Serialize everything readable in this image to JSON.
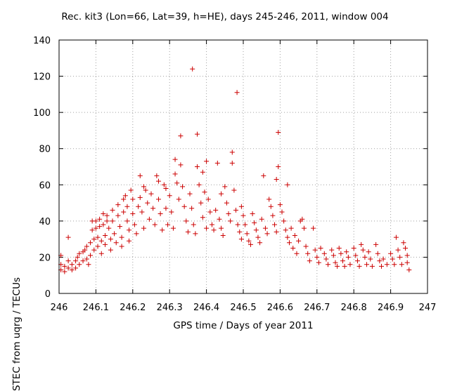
{
  "chart_data": {
    "type": "scatter",
    "title": "Rec. kit3 (Lon=66, Lat=39, h=HE), days 245-246, 2011, window 004",
    "xlabel": "GPS time / Days of year 2011",
    "ylabel": "STEC from uqrg / TECUs",
    "xlim": [
      246,
      247
    ],
    "ylim": [
      0,
      140
    ],
    "xticks": [
      246,
      246.1,
      246.2,
      246.3,
      246.4,
      246.5,
      246.6,
      246.7,
      246.8,
      246.9,
      247
    ],
    "xtick_labels": [
      "246",
      "246.1",
      "246.2",
      "246.3",
      "246.4",
      "246.5",
      "246.6",
      "246.7",
      "246.8",
      "246.9",
      "247"
    ],
    "yticks": [
      0,
      20,
      40,
      60,
      80,
      100,
      120,
      140
    ],
    "ytick_labels": [
      "0",
      "20",
      "40",
      "60",
      "80",
      "100",
      "120",
      "140"
    ],
    "marker": "+",
    "color": "#cc0000",
    "grid": true,
    "series": [
      {
        "name": "STEC",
        "points": [
          [
            246.005,
            21
          ],
          [
            246.005,
            16
          ],
          [
            246.005,
            13
          ],
          [
            246.015,
            15
          ],
          [
            246.015,
            12
          ],
          [
            246.025,
            31
          ],
          [
            246.025,
            18
          ],
          [
            246.025,
            14
          ],
          [
            246.035,
            16
          ],
          [
            246.035,
            13
          ],
          [
            246.045,
            18
          ],
          [
            246.045,
            14
          ],
          [
            246.05,
            20
          ],
          [
            246.055,
            22
          ],
          [
            246.055,
            16
          ],
          [
            246.065,
            23
          ],
          [
            246.065,
            18
          ],
          [
            246.07,
            24
          ],
          [
            246.075,
            26
          ],
          [
            246.075,
            19
          ],
          [
            246.08,
            16
          ],
          [
            246.085,
            28
          ],
          [
            246.085,
            21
          ],
          [
            246.09,
            40
          ],
          [
            246.09,
            35
          ],
          [
            246.095,
            30
          ],
          [
            246.095,
            24
          ],
          [
            246.1,
            40
          ],
          [
            246.1,
            36
          ],
          [
            246.105,
            31
          ],
          [
            246.105,
            26
          ],
          [
            246.11,
            41
          ],
          [
            246.11,
            37
          ],
          [
            246.115,
            29
          ],
          [
            246.115,
            22
          ],
          [
            246.12,
            44
          ],
          [
            246.12,
            38
          ],
          [
            246.125,
            32
          ],
          [
            246.125,
            27
          ],
          [
            246.13,
            43
          ],
          [
            246.13,
            40
          ],
          [
            246.135,
            36
          ],
          [
            246.14,
            30
          ],
          [
            246.14,
            24
          ],
          [
            246.145,
            46
          ],
          [
            246.145,
            40
          ],
          [
            246.15,
            33
          ],
          [
            246.155,
            28
          ],
          [
            246.16,
            49
          ],
          [
            246.16,
            43
          ],
          [
            246.165,
            37
          ],
          [
            246.17,
            31
          ],
          [
            246.17,
            26
          ],
          [
            246.175,
            52
          ],
          [
            246.175,
            45
          ],
          [
            246.18,
            54
          ],
          [
            246.185,
            48
          ],
          [
            246.185,
            40
          ],
          [
            246.19,
            35
          ],
          [
            246.19,
            29
          ],
          [
            246.195,
            57
          ],
          [
            246.2,
            52
          ],
          [
            246.2,
            44
          ],
          [
            246.205,
            38
          ],
          [
            246.21,
            33
          ],
          [
            246.215,
            48
          ],
          [
            246.22,
            65
          ],
          [
            246.22,
            53
          ],
          [
            246.225,
            45
          ],
          [
            246.23,
            59
          ],
          [
            246.23,
            36
          ],
          [
            246.235,
            57
          ],
          [
            246.24,
            50
          ],
          [
            246.245,
            41
          ],
          [
            246.25,
            55
          ],
          [
            246.255,
            47
          ],
          [
            246.26,
            38
          ],
          [
            246.265,
            65
          ],
          [
            246.27,
            62
          ],
          [
            246.27,
            52
          ],
          [
            246.275,
            44
          ],
          [
            246.28,
            35
          ],
          [
            246.285,
            60
          ],
          [
            246.29,
            58
          ],
          [
            246.29,
            47
          ],
          [
            246.295,
            38
          ],
          [
            246.3,
            54
          ],
          [
            246.305,
            45
          ],
          [
            246.31,
            36
          ],
          [
            246.315,
            66
          ],
          [
            246.315,
            74
          ],
          [
            246.32,
            61
          ],
          [
            246.325,
            52
          ],
          [
            246.33,
            71
          ],
          [
            246.33,
            87
          ],
          [
            246.335,
            59
          ],
          [
            246.34,
            48
          ],
          [
            246.345,
            40
          ],
          [
            246.35,
            34
          ],
          [
            246.355,
            55
          ],
          [
            246.36,
            47
          ],
          [
            246.362,
            124
          ],
          [
            246.365,
            38
          ],
          [
            246.37,
            33
          ],
          [
            246.375,
            88
          ],
          [
            246.375,
            70
          ],
          [
            246.38,
            60
          ],
          [
            246.385,
            50
          ],
          [
            246.39,
            67
          ],
          [
            246.39,
            42
          ],
          [
            246.395,
            56
          ],
          [
            246.4,
            73
          ],
          [
            246.4,
            36
          ],
          [
            246.405,
            52
          ],
          [
            246.41,
            45
          ],
          [
            246.415,
            38
          ],
          [
            246.42,
            35
          ],
          [
            246.425,
            46
          ],
          [
            246.43,
            72
          ],
          [
            246.435,
            41
          ],
          [
            246.44,
            55
          ],
          [
            246.44,
            36
          ],
          [
            246.445,
            32
          ],
          [
            246.45,
            59
          ],
          [
            246.455,
            50
          ],
          [
            246.46,
            44
          ],
          [
            246.465,
            40
          ],
          [
            246.47,
            78
          ],
          [
            246.47,
            72
          ],
          [
            246.475,
            57
          ],
          [
            246.48,
            46
          ],
          [
            246.483,
            111
          ],
          [
            246.485,
            38
          ],
          [
            246.49,
            34
          ],
          [
            246.495,
            48
          ],
          [
            246.495,
            30
          ],
          [
            246.5,
            43
          ],
          [
            246.505,
            38
          ],
          [
            246.51,
            33
          ],
          [
            246.515,
            29
          ],
          [
            246.52,
            27
          ],
          [
            246.525,
            44
          ],
          [
            246.53,
            39
          ],
          [
            246.535,
            35
          ],
          [
            246.54,
            31
          ],
          [
            246.545,
            28
          ],
          [
            246.55,
            41
          ],
          [
            246.555,
            65
          ],
          [
            246.56,
            36
          ],
          [
            246.565,
            33
          ],
          [
            246.57,
            52
          ],
          [
            246.575,
            48
          ],
          [
            246.58,
            43
          ],
          [
            246.585,
            38
          ],
          [
            246.59,
            63
          ],
          [
            246.59,
            34
          ],
          [
            246.595,
            89
          ],
          [
            246.595,
            70
          ],
          [
            246.6,
            49
          ],
          [
            246.605,
            45
          ],
          [
            246.61,
            40
          ],
          [
            246.615,
            35
          ],
          [
            246.62,
            60
          ],
          [
            246.62,
            31
          ],
          [
            246.625,
            28
          ],
          [
            246.63,
            36
          ],
          [
            246.635,
            25
          ],
          [
            246.64,
            32
          ],
          [
            246.645,
            22
          ],
          [
            246.65,
            29
          ],
          [
            246.655,
            40
          ],
          [
            246.66,
            41
          ],
          [
            246.665,
            36
          ],
          [
            246.67,
            26
          ],
          [
            246.675,
            22
          ],
          [
            246.68,
            18
          ],
          [
            246.69,
            36
          ],
          [
            246.695,
            24
          ],
          [
            246.7,
            20
          ],
          [
            246.705,
            17
          ],
          [
            246.71,
            25
          ],
          [
            246.72,
            22
          ],
          [
            246.725,
            19
          ],
          [
            246.73,
            16
          ],
          [
            246.74,
            24
          ],
          [
            246.745,
            21
          ],
          [
            246.75,
            17
          ],
          [
            246.755,
            15
          ],
          [
            246.76,
            25
          ],
          [
            246.765,
            22
          ],
          [
            246.77,
            18
          ],
          [
            246.775,
            15
          ],
          [
            246.78,
            23
          ],
          [
            246.785,
            20
          ],
          [
            246.79,
            16
          ],
          [
            246.8,
            25
          ],
          [
            246.805,
            21
          ],
          [
            246.81,
            18
          ],
          [
            246.815,
            15
          ],
          [
            246.82,
            27
          ],
          [
            246.825,
            24
          ],
          [
            246.83,
            20
          ],
          [
            246.835,
            16
          ],
          [
            246.84,
            23
          ],
          [
            246.845,
            19
          ],
          [
            246.85,
            15
          ],
          [
            246.86,
            27
          ],
          [
            246.865,
            22
          ],
          [
            246.87,
            18
          ],
          [
            246.875,
            15
          ],
          [
            246.88,
            19
          ],
          [
            246.89,
            16
          ],
          [
            246.9,
            22
          ],
          [
            246.905,
            19
          ],
          [
            246.91,
            16
          ],
          [
            246.915,
            31
          ],
          [
            246.92,
            24
          ],
          [
            246.925,
            20
          ],
          [
            246.93,
            16
          ],
          [
            246.935,
            28
          ],
          [
            246.94,
            25
          ],
          [
            246.945,
            21
          ],
          [
            246.945,
            17
          ],
          [
            246.95,
            13
          ]
        ]
      }
    ]
  }
}
